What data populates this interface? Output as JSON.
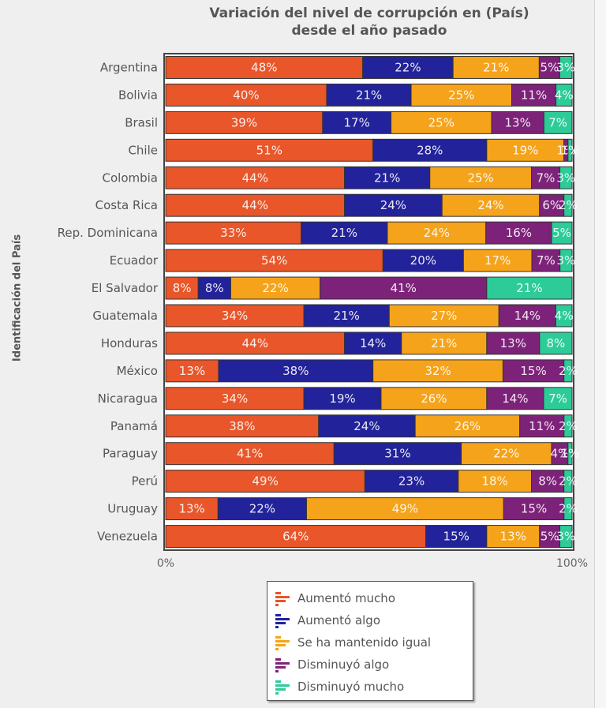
{
  "chart_data": {
    "type": "bar",
    "orientation": "horizontal",
    "stacked": "percent",
    "title": "Variación del nivel de corrupción en (País) desde el año pasado",
    "title_lines": [
      "Variación del nivel de corrupción en (País)",
      "desde el año pasado"
    ],
    "xlabel": "",
    "ylabel": "Identificación del País",
    "xlim": [
      0,
      100
    ],
    "x_ticks": [
      "0%",
      "100%"
    ],
    "grid": false,
    "legend_position": "bottom-center",
    "categories": [
      "Argentina",
      "Bolivia",
      "Brasil",
      "Chile",
      "Colombia",
      "Costa Rica",
      "Rep. Dominicana",
      "Ecuador",
      "El Salvador",
      "Guatemala",
      "Honduras",
      "México",
      "Nicaragua",
      "Panamá",
      "Paraguay",
      "Perú",
      "Uruguay",
      "Venezuela"
    ],
    "series": [
      {
        "name": "Aumentó mucho",
        "color": "#e8562a",
        "values": [
          48,
          40,
          39,
          51,
          44,
          44,
          33,
          54,
          8,
          34,
          44,
          13,
          34,
          38,
          41,
          49,
          13,
          64
        ]
      },
      {
        "name": "Aumentó algo",
        "color": "#22229a",
        "values": [
          22,
          21,
          17,
          28,
          21,
          24,
          21,
          20,
          8,
          21,
          14,
          38,
          19,
          24,
          31,
          23,
          22,
          15
        ]
      },
      {
        "name": "Se ha mantenido igual",
        "color": "#f5a31a",
        "values": [
          21,
          25,
          25,
          19,
          25,
          24,
          24,
          17,
          22,
          27,
          21,
          32,
          26,
          26,
          22,
          18,
          49,
          13
        ]
      },
      {
        "name": "Disminuyó algo",
        "color": "#7d2279",
        "values": [
          5,
          11,
          13,
          1,
          7,
          6,
          16,
          7,
          41,
          14,
          13,
          15,
          14,
          11,
          4,
          8,
          15,
          5
        ]
      },
      {
        "name": "Disminuyó mucho",
        "color": "#2ccb98",
        "values": [
          3,
          4,
          7,
          1,
          3,
          2,
          5,
          3,
          21,
          4,
          8,
          2,
          7,
          2,
          1,
          2,
          2,
          3
        ]
      }
    ]
  }
}
